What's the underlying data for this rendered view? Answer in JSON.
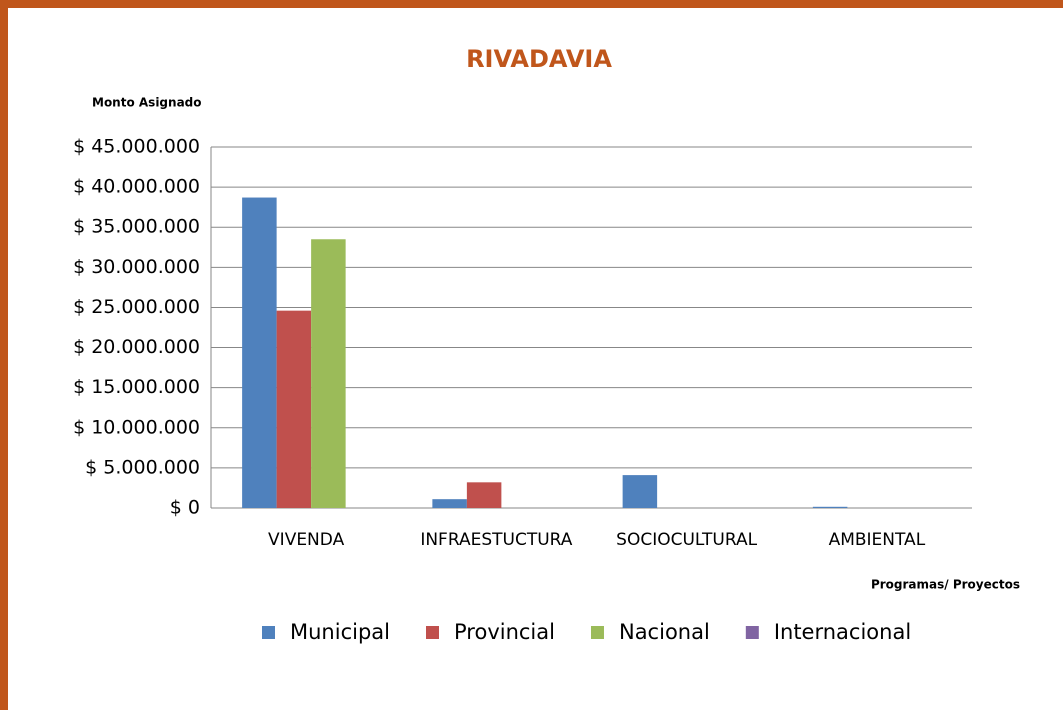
{
  "chart_data": {
    "type": "bar",
    "title": "RIVADAVIA",
    "y_axis_label": "Monto Asignado",
    "x_axis_label": "Programas/ Proyectos",
    "categories": [
      "VIVENDA",
      "INFRAESTUCTURA",
      "SOCIOCULTURAL",
      "AMBIENTAL"
    ],
    "series": [
      {
        "name": "Municipal",
        "color": "#4f81bd",
        "values": [
          38700000,
          1100000,
          4100000,
          150000
        ]
      },
      {
        "name": "Provincial",
        "color": "#c0504d",
        "values": [
          24600000,
          3200000,
          0,
          0
        ]
      },
      {
        "name": "Nacional",
        "color": "#9bbb59",
        "values": [
          33500000,
          0,
          0,
          0
        ]
      },
      {
        "name": "Internacional",
        "color": "#8064a2",
        "values": [
          0,
          0,
          0,
          0
        ]
      }
    ],
    "ylim": [
      0,
      45000000
    ],
    "yticks": [
      {
        "value": 0,
        "label": "$ 0"
      },
      {
        "value": 5000000,
        "label": "$ 5.000.000"
      },
      {
        "value": 10000000,
        "label": "$ 10.000.000"
      },
      {
        "value": 15000000,
        "label": "$ 15.000.000"
      },
      {
        "value": 20000000,
        "label": "$ 20.000.000"
      },
      {
        "value": 25000000,
        "label": "$ 25.000.000"
      },
      {
        "value": 30000000,
        "label": "$ 30.000.000"
      },
      {
        "value": 35000000,
        "label": "$ 35.000.000"
      },
      {
        "value": 40000000,
        "label": "$ 40.000.000"
      },
      {
        "value": 45000000,
        "label": "$ 45.000.000"
      }
    ],
    "grid": true,
    "legend": "bottom"
  }
}
